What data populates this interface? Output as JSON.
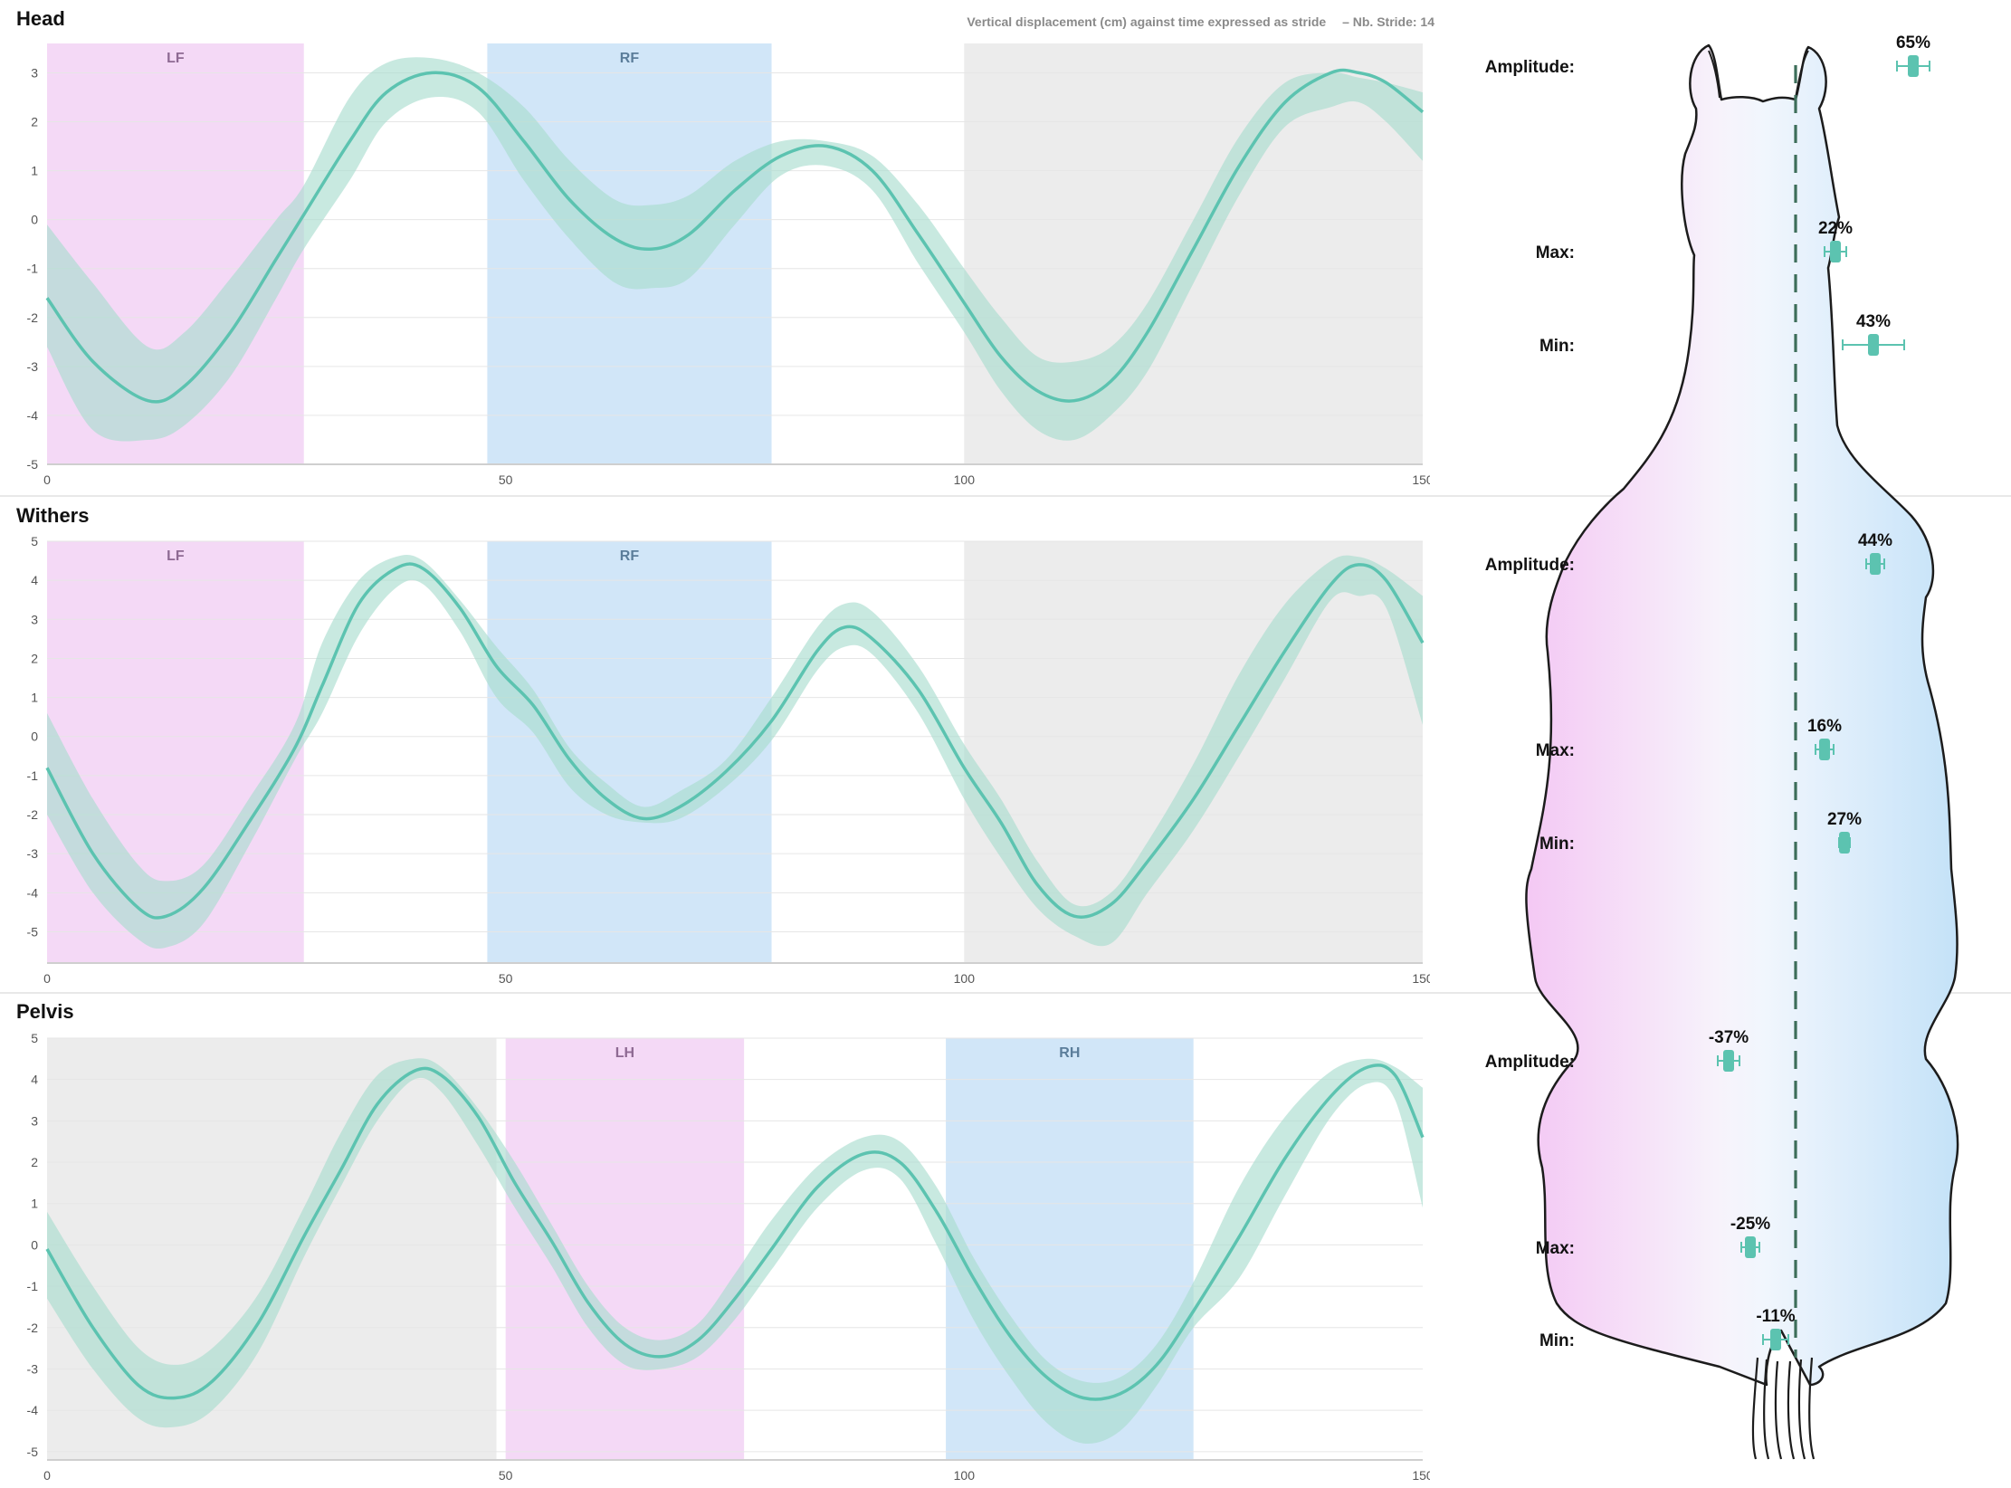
{
  "header_note": {
    "text": "Vertical displacement (cm) against time expressed as stride",
    "stride_text": "– Nb. Stride: 14"
  },
  "colors": {
    "accent": "#5cc3b0",
    "band": "#a7dccd",
    "pink": "#f4d9f6",
    "blue": "#d1e6f8",
    "grey": "#ececec",
    "pinkLabel": "#8e6a93",
    "blueLabel": "#5b7d9a"
  },
  "chart_data": [
    {
      "type": "area",
      "title": "Head",
      "xlim": [
        0,
        150
      ],
      "ylim": [
        -5,
        3.6
      ],
      "x_ticks": [
        0,
        50,
        100,
        150
      ],
      "y_ticks": [
        -5,
        -4,
        -3,
        -2,
        -1,
        0,
        1,
        2,
        3
      ],
      "phases": [
        {
          "label": "LF",
          "start": 0,
          "end": 28,
          "color": "pink"
        },
        {
          "label": "RF",
          "start": 48,
          "end": 79,
          "color": "blue"
        },
        {
          "label": "",
          "start": 100,
          "end": 150,
          "color": "grey"
        }
      ],
      "series": [
        {
          "x": [
            0,
            5,
            11,
            15,
            20,
            25,
            28,
            33,
            37,
            42,
            47,
            52,
            57,
            62,
            66,
            70,
            75,
            80,
            85,
            90,
            95,
            100,
            104,
            108,
            112,
            116,
            120,
            125,
            130,
            135,
            140,
            143,
            146,
            150
          ],
          "mean": [
            -1.6,
            -2.9,
            -3.7,
            -3.4,
            -2.3,
            -0.8,
            0.1,
            1.6,
            2.6,
            3.0,
            2.7,
            1.6,
            0.4,
            -0.4,
            -0.6,
            -0.3,
            0.6,
            1.3,
            1.5,
            1.0,
            -0.3,
            -1.7,
            -2.8,
            -3.5,
            -3.7,
            -3.3,
            -2.3,
            -0.6,
            1.1,
            2.4,
            3.0,
            3.0,
            2.8,
            2.2
          ],
          "upper": [
            -0.1,
            -1.3,
            -2.6,
            -2.3,
            -1.2,
            0.0,
            0.7,
            2.5,
            3.2,
            3.3,
            3.0,
            2.3,
            1.2,
            0.4,
            0.3,
            0.5,
            1.2,
            1.6,
            1.6,
            1.3,
            0.3,
            -1.0,
            -2.0,
            -2.8,
            -2.9,
            -2.6,
            -1.7,
            0.0,
            1.7,
            2.8,
            3.0,
            2.9,
            2.8,
            2.6
          ],
          "lower": [
            -2.6,
            -4.3,
            -4.5,
            -4.2,
            -3.2,
            -1.6,
            -0.6,
            0.8,
            2.0,
            2.5,
            2.2,
            0.8,
            -0.4,
            -1.3,
            -1.4,
            -1.2,
            -0.1,
            0.9,
            1.1,
            0.6,
            -0.9,
            -2.3,
            -3.5,
            -4.3,
            -4.5,
            -4.0,
            -3.1,
            -1.3,
            0.5,
            1.9,
            2.3,
            2.4,
            2.0,
            1.2
          ]
        }
      ]
    },
    {
      "type": "area",
      "title": "Withers",
      "xlim": [
        0,
        150
      ],
      "ylim": [
        -5.8,
        5
      ],
      "x_ticks": [
        0,
        50,
        100,
        150
      ],
      "y_ticks": [
        -5,
        -4,
        -3,
        -2,
        -1,
        0,
        1,
        2,
        3,
        4,
        5
      ],
      "phases": [
        {
          "label": "LF",
          "start": 0,
          "end": 28,
          "color": "pink"
        },
        {
          "label": "RF",
          "start": 48,
          "end": 79,
          "color": "blue"
        },
        {
          "label": "",
          "start": 100,
          "end": 150,
          "color": "grey"
        }
      ],
      "series": [
        {
          "x": [
            0,
            5,
            10,
            13,
            17,
            22,
            27,
            30,
            34,
            38,
            41,
            45,
            49,
            53,
            57,
            61,
            65,
            69,
            74,
            79,
            84,
            87,
            90,
            95,
            100,
            104,
            108,
            112,
            116,
            120,
            125,
            130,
            135,
            140,
            143,
            146,
            150
          ],
          "mean": [
            -0.8,
            -3.0,
            -4.4,
            -4.6,
            -3.9,
            -2.2,
            -0.3,
            1.3,
            3.4,
            4.3,
            4.3,
            3.3,
            1.8,
            0.8,
            -0.6,
            -1.6,
            -2.1,
            -1.8,
            -0.9,
            0.4,
            2.2,
            2.8,
            2.5,
            1.2,
            -0.8,
            -2.2,
            -3.8,
            -4.6,
            -4.3,
            -3.2,
            -1.6,
            0.3,
            2.2,
            3.9,
            4.4,
            4.0,
            2.4
          ],
          "upper": [
            0.6,
            -1.6,
            -3.3,
            -3.7,
            -3.3,
            -1.6,
            0.3,
            2.4,
            4.0,
            4.6,
            4.5,
            3.5,
            2.3,
            1.2,
            -0.3,
            -1.2,
            -1.8,
            -1.4,
            -0.6,
            1.0,
            2.8,
            3.4,
            3.2,
            1.8,
            -0.2,
            -1.6,
            -3.2,
            -4.3,
            -4.0,
            -2.7,
            -0.7,
            1.6,
            3.4,
            4.5,
            4.6,
            4.3,
            3.6
          ],
          "lower": [
            -2.0,
            -4.0,
            -5.2,
            -5.4,
            -4.8,
            -2.8,
            -0.6,
            0.6,
            2.6,
            3.8,
            3.9,
            2.7,
            1.0,
            0.1,
            -1.3,
            -2.0,
            -2.2,
            -2.1,
            -1.3,
            -0.1,
            1.7,
            2.3,
            2.1,
            0.6,
            -1.6,
            -3.1,
            -4.4,
            -5.1,
            -5.3,
            -4.0,
            -2.4,
            -0.5,
            1.5,
            3.5,
            3.6,
            3.3,
            0.3
          ]
        }
      ]
    },
    {
      "type": "area",
      "title": "Pelvis",
      "xlim": [
        0,
        150
      ],
      "ylim": [
        -5.2,
        5
      ],
      "x_ticks": [
        0,
        50,
        100,
        150
      ],
      "y_ticks": [
        -5,
        -4,
        -3,
        -2,
        -1,
        0,
        1,
        2,
        3,
        4,
        5
      ],
      "phases": [
        {
          "label": "",
          "start": 0,
          "end": 49,
          "color": "grey"
        },
        {
          "label": "LH",
          "start": 50,
          "end": 76,
          "color": "pink"
        },
        {
          "label": "RH",
          "start": 98,
          "end": 125,
          "color": "blue"
        }
      ],
      "series": [
        {
          "x": [
            0,
            5,
            10,
            14,
            18,
            23,
            28,
            32,
            36,
            40,
            43,
            47,
            51,
            55,
            59,
            63,
            67,
            71,
            75,
            79,
            84,
            89,
            93,
            97,
            101,
            105,
            109,
            113,
            117,
            121,
            125,
            130,
            135,
            140,
            144,
            147,
            150
          ],
          "mean": [
            -0.1,
            -2.0,
            -3.4,
            -3.7,
            -3.3,
            -1.9,
            0.2,
            1.8,
            3.4,
            4.2,
            4.1,
            3.1,
            1.5,
            0.1,
            -1.4,
            -2.4,
            -2.7,
            -2.3,
            -1.3,
            -0.1,
            1.4,
            2.2,
            2.0,
            0.8,
            -0.8,
            -2.2,
            -3.2,
            -3.7,
            -3.6,
            -2.9,
            -1.6,
            0.2,
            2.1,
            3.6,
            4.3,
            4.1,
            2.6
          ],
          "upper": [
            0.8,
            -1.0,
            -2.5,
            -2.9,
            -2.5,
            -1.2,
            0.9,
            2.7,
            4.1,
            4.5,
            4.3,
            3.3,
            2.0,
            0.5,
            -1.0,
            -2.0,
            -2.3,
            -1.9,
            -0.7,
            0.6,
            1.9,
            2.6,
            2.5,
            1.4,
            -0.3,
            -1.7,
            -2.8,
            -3.3,
            -3.2,
            -2.4,
            -0.9,
            1.4,
            3.1,
            4.2,
            4.5,
            4.3,
            3.8
          ],
          "lower": [
            -1.3,
            -3.0,
            -4.2,
            -4.4,
            -4.0,
            -2.6,
            -0.3,
            1.4,
            3.0,
            4.0,
            3.7,
            2.4,
            0.9,
            -0.5,
            -2.0,
            -2.9,
            -3.0,
            -2.7,
            -1.8,
            -0.6,
            0.9,
            1.8,
            1.6,
            0.0,
            -1.8,
            -3.2,
            -4.3,
            -4.8,
            -4.5,
            -3.4,
            -2.0,
            -0.8,
            1.2,
            3.1,
            3.9,
            3.5,
            0.9
          ]
        }
      ]
    }
  ],
  "symmetry": [
    {
      "panel": "Head",
      "rows": [
        {
          "label": "Amplitude:",
          "value": "65%",
          "pct": 65,
          "err": 9
        },
        {
          "label": "Max:",
          "value": "22%",
          "pct": 22,
          "err": 6
        },
        {
          "label": "Min:",
          "value": "43%",
          "pct": 43,
          "err": 17
        }
      ]
    },
    {
      "panel": "Withers",
      "rows": [
        {
          "label": "Amplitude:",
          "value": "44%",
          "pct": 44,
          "err": 5
        },
        {
          "label": "Max:",
          "value": "16%",
          "pct": 16,
          "err": 5
        },
        {
          "label": "Min:",
          "value": "27%",
          "pct": 27,
          "err": 3
        }
      ]
    },
    {
      "panel": "Pelvis",
      "rows": [
        {
          "label": "Amplitude:",
          "value": "-37%",
          "pct": -37,
          "err": 6
        },
        {
          "label": "Max:",
          "value": "-25%",
          "pct": -25,
          "err": 5
        },
        {
          "label": "Min:",
          "value": "-11%",
          "pct": -11,
          "err": 7
        }
      ]
    }
  ]
}
